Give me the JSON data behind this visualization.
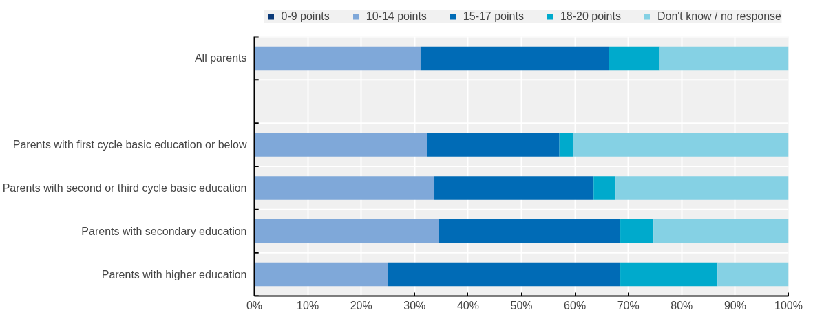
{
  "chart_data": {
    "type": "bar",
    "orientation": "horizontal",
    "stacked": true,
    "categories": [
      "All parents",
      null,
      "Parents with first cycle basic education or below",
      "Parents with second or third cycle basic education",
      "Parents with secondary education",
      "Parents with higher education"
    ],
    "series": [
      {
        "name": "0-9 points",
        "color": "#0b3a78",
        "values": [
          0,
          null,
          0,
          0,
          0,
          0
        ]
      },
      {
        "name": "10-14 points",
        "color": "#7fa8d9",
        "values": [
          31.1,
          null,
          32.3,
          33.7,
          34.6,
          25.0
        ]
      },
      {
        "name": "15-17 points",
        "color": "#006bb6",
        "values": [
          35.3,
          null,
          24.8,
          29.8,
          33.9,
          43.5
        ]
      },
      {
        "name": "18-20 points",
        "color": "#00aacc",
        "values": [
          9.5,
          null,
          2.5,
          4.1,
          6.2,
          18.2
        ]
      },
      {
        "name": "Don't know / no response",
        "color": "#85d1e4",
        "values": [
          24.1,
          null,
          40.4,
          32.4,
          25.3,
          13.3
        ]
      }
    ],
    "xlim": [
      0,
      100
    ],
    "xticks": [
      {
        "value": 0,
        "label": "0%"
      },
      {
        "value": 10,
        "label": "10%"
      },
      {
        "value": 20,
        "label": "20%"
      },
      {
        "value": 30,
        "label": "30%"
      },
      {
        "value": 40,
        "label": "40%"
      },
      {
        "value": 50,
        "label": "50%"
      },
      {
        "value": 60,
        "label": "60%"
      },
      {
        "value": 70,
        "label": "70%"
      },
      {
        "value": 80,
        "label": "80%"
      },
      {
        "value": 90,
        "label": "90%"
      },
      {
        "value": 100,
        "label": "100%"
      }
    ],
    "grid": true,
    "legend": "top"
  }
}
